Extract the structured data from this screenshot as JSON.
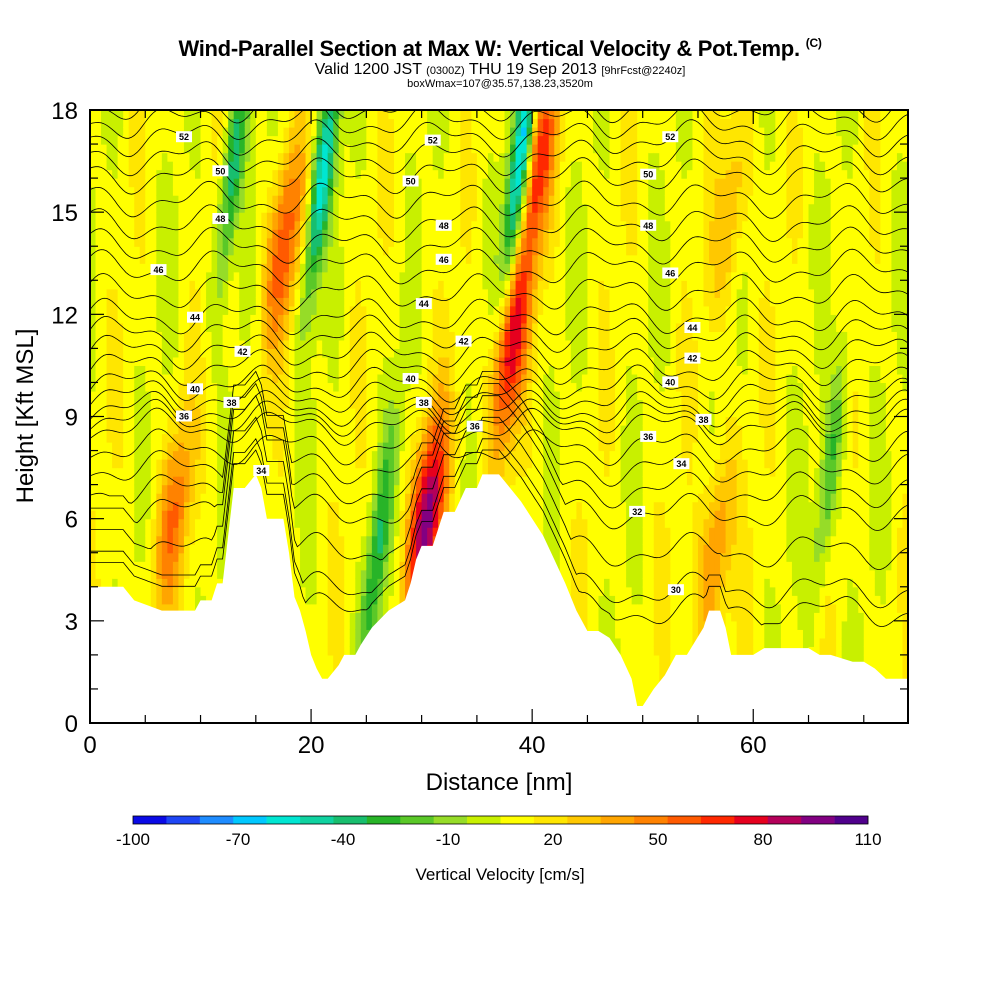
{
  "header": {
    "title": "Wind-Parallel Section at Max W: Vertical Velocity & Pot.Temp.",
    "title_mark": "(C)",
    "valid_prefix": "Valid 1200 JST",
    "valid_zulu": "(0300Z)",
    "valid_date": "THU 19 Sep 2013",
    "forecast": "[9hrFcst@2240z]",
    "boxwmax": "boxWmax=107@35.57,138.23,3520m"
  },
  "chart_data": {
    "type": "heatmap",
    "title": "Wind-Parallel Section at Max W: Vertical Velocity & Pot.Temp.",
    "xlabel": "Distance [nm]",
    "ylabel": "Height [Kft MSL]",
    "xlim": [
      0,
      74
    ],
    "ylim": [
      0,
      18
    ],
    "x_ticks": [
      0,
      20,
      40,
      60
    ],
    "y_ticks": [
      0,
      3,
      6,
      9,
      12,
      15,
      18
    ],
    "colorbar": {
      "label": "Vertical Velocity [cm/s]",
      "tick_labels": [
        "-100",
        "-70",
        "-40",
        "-10",
        "20",
        "50",
        "80",
        "110"
      ],
      "bins": [
        -100,
        -90,
        -80,
        -70,
        -60,
        -50,
        -40,
        -30,
        -20,
        -10,
        0,
        10,
        20,
        30,
        40,
        50,
        60,
        70,
        80,
        90,
        100,
        110
      ],
      "colors": [
        "#0a0ae6",
        "#1e46f5",
        "#1e8cff",
        "#00c8ff",
        "#00e6d2",
        "#10d2a0",
        "#18be6e",
        "#28b428",
        "#5ac828",
        "#96dc28",
        "#c8f000",
        "#ffff00",
        "#ffe600",
        "#ffc800",
        "#ffa500",
        "#ff8200",
        "#ff5a00",
        "#ff2800",
        "#e6001e",
        "#b4005a",
        "#820082",
        "#50008c"
      ]
    },
    "max_vertical_velocity_cm_s": 107,
    "updraft_cores": [
      {
        "x": 7.5,
        "z": 6.0,
        "w": 60
      },
      {
        "x": 17.5,
        "z": 14.0,
        "w": 70
      },
      {
        "x": 30.5,
        "z": 6.0,
        "w": 107
      },
      {
        "x": 38.0,
        "z": 11.0,
        "w": 90
      },
      {
        "x": 40.5,
        "z": 16.5,
        "w": 80
      },
      {
        "x": 56.5,
        "z": 5.0,
        "w": 60
      },
      {
        "x": 58.0,
        "z": 15.0,
        "w": 45
      }
    ],
    "downdraft_cores": [
      {
        "x": 13.0,
        "z": 16.5,
        "w": -40
      },
      {
        "x": 21.0,
        "z": 16.0,
        "w": -55
      },
      {
        "x": 39.0,
        "z": 16.5,
        "w": -80
      },
      {
        "x": 26.0,
        "z": 5.0,
        "w": -30
      },
      {
        "x": 67.0,
        "z": 7.5,
        "w": -25
      }
    ],
    "terrain_kft": {
      "x": [
        0,
        3,
        4,
        6.5,
        9.5,
        10,
        11,
        11.5,
        12,
        13,
        14,
        15,
        15.5,
        16,
        17.5,
        18,
        18.5,
        19,
        19.5,
        20,
        20.5,
        21,
        21.5,
        22.5,
        23,
        24,
        24.5,
        25.5,
        27,
        28.5,
        29,
        29.5,
        30,
        31,
        32,
        33,
        34,
        35,
        35.5,
        37,
        38,
        39,
        40,
        41,
        42,
        43,
        44,
        45,
        45.5,
        46,
        47,
        48,
        49,
        49.5,
        50,
        51,
        52,
        53,
        54,
        55.5,
        56,
        57,
        57.5,
        58,
        60,
        61,
        62,
        65,
        66,
        67,
        69,
        70,
        71,
        72,
        74
      ],
      "z": [
        4.0,
        4.0,
        3.6,
        3.3,
        3.3,
        3.6,
        3.6,
        4.1,
        4.1,
        6.9,
        6.9,
        7.3,
        6.9,
        6.0,
        6.0,
        5.0,
        3.7,
        3.3,
        2.7,
        2.0,
        1.6,
        1.3,
        1.3,
        1.7,
        2.0,
        2.0,
        2.3,
        2.8,
        3.3,
        3.6,
        4.1,
        4.8,
        5.2,
        5.2,
        6.2,
        6.2,
        6.9,
        6.9,
        7.3,
        7.3,
        6.9,
        6.5,
        6.0,
        5.5,
        4.8,
        4.1,
        3.3,
        2.7,
        2.7,
        2.7,
        2.5,
        2.0,
        1.3,
        0.5,
        0.5,
        1.0,
        1.4,
        2.0,
        2.0,
        2.8,
        3.3,
        3.3,
        2.8,
        2.0,
        2.0,
        2.2,
        2.2,
        2.2,
        2.0,
        2.0,
        1.8,
        1.8,
        1.6,
        1.3,
        1.3
      ]
    },
    "potential_temperature_contours": {
      "contour_interval": 1,
      "labels": [
        {
          "text": "52",
          "x": 8.5,
          "z": 17.2
        },
        {
          "text": "50",
          "x": 11.8,
          "z": 16.2
        },
        {
          "text": "48",
          "x": 11.8,
          "z": 14.8
        },
        {
          "text": "46",
          "x": 6.2,
          "z": 13.3
        },
        {
          "text": "44",
          "x": 9.5,
          "z": 11.9
        },
        {
          "text": "42",
          "x": 13.8,
          "z": 10.9
        },
        {
          "text": "40",
          "x": 9.5,
          "z": 9.8
        },
        {
          "text": "38",
          "x": 12.8,
          "z": 9.4
        },
        {
          "text": "36",
          "x": 8.5,
          "z": 9.0
        },
        {
          "text": "34",
          "x": 15.5,
          "z": 7.4
        },
        {
          "text": "52",
          "x": 31.0,
          "z": 17.1
        },
        {
          "text": "50",
          "x": 29.0,
          "z": 15.9
        },
        {
          "text": "48",
          "x": 32.0,
          "z": 14.6
        },
        {
          "text": "46",
          "x": 32.0,
          "z": 13.6
        },
        {
          "text": "44",
          "x": 30.2,
          "z": 12.3
        },
        {
          "text": "42",
          "x": 33.8,
          "z": 11.2
        },
        {
          "text": "40",
          "x": 29.0,
          "z": 10.1
        },
        {
          "text": "38",
          "x": 30.2,
          "z": 9.4
        },
        {
          "text": "36",
          "x": 34.8,
          "z": 8.7
        },
        {
          "text": "52",
          "x": 52.5,
          "z": 17.2
        },
        {
          "text": "50",
          "x": 50.5,
          "z": 16.1
        },
        {
          "text": "48",
          "x": 50.5,
          "z": 14.6
        },
        {
          "text": "46",
          "x": 52.5,
          "z": 13.2
        },
        {
          "text": "44",
          "x": 54.5,
          "z": 11.6
        },
        {
          "text": "42",
          "x": 54.5,
          "z": 10.7
        },
        {
          "text": "40",
          "x": 52.5,
          "z": 10.0
        },
        {
          "text": "38",
          "x": 55.5,
          "z": 8.9
        },
        {
          "text": "36",
          "x": 50.5,
          "z": 8.4
        },
        {
          "text": "34",
          "x": 53.5,
          "z": 7.6
        },
        {
          "text": "32",
          "x": 49.5,
          "z": 6.2
        },
        {
          "text": "30",
          "x": 53.0,
          "z": 3.9
        }
      ]
    }
  }
}
